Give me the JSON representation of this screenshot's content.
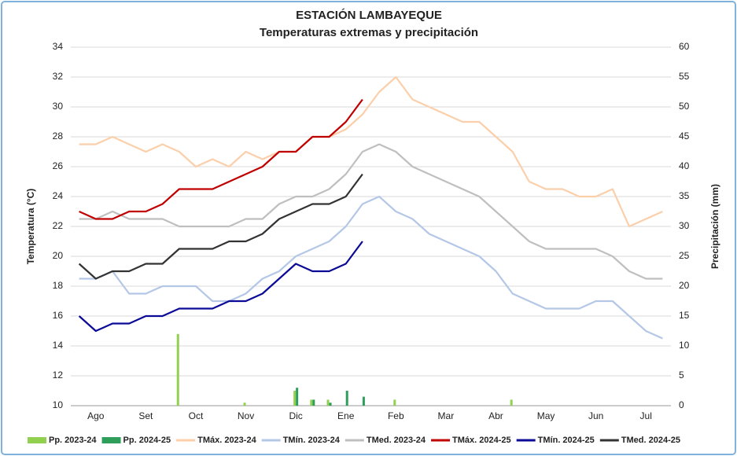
{
  "chart_data": {
    "type": "line",
    "title": "ESTACIÓN LAMBAYEQUE",
    "subtitle": "Temperaturas extremas y precipitación",
    "y_label": "Temperatura (°C)",
    "y2_label": "Precipitación (mm)",
    "categories": [
      null,
      "Ago",
      null,
      null,
      "Set",
      null,
      null,
      "Oct",
      null,
      null,
      "Nov",
      null,
      null,
      "Dic",
      null,
      null,
      "Ene",
      null,
      null,
      "Feb",
      null,
      null,
      "Mar",
      null,
      null,
      "Abr",
      null,
      null,
      "May",
      null,
      null,
      "Jun",
      null,
      null,
      "Jul",
      null
    ],
    "ylim": [
      10,
      34
    ],
    "yticks": [
      10,
      12,
      14,
      16,
      18,
      20,
      22,
      24,
      26,
      28,
      30,
      32,
      34
    ],
    "y2lim": [
      0,
      60
    ],
    "y2ticks": [
      0,
      5,
      10,
      15,
      20,
      25,
      30,
      35,
      40,
      45,
      50,
      55,
      60
    ],
    "grid": true,
    "series": [
      {
        "name": "Pp. 2023-24",
        "type": "bar",
        "axis": "y2",
        "color": "#92d050",
        "values": [
          0,
          0,
          0,
          0,
          0,
          0,
          12,
          0,
          0,
          0,
          0.5,
          0,
          0,
          2.5,
          1,
          1,
          0,
          0,
          0,
          1,
          0,
          0,
          0,
          0,
          0,
          0,
          1,
          0,
          0,
          0,
          0,
          0,
          0,
          0,
          0,
          0
        ]
      },
      {
        "name": "Pp. 2024-25",
        "type": "bar",
        "axis": "y2",
        "color": "#2e9e5b",
        "values": [
          0,
          0,
          0,
          0,
          0,
          0,
          0,
          0,
          0,
          0,
          0,
          0,
          0,
          3,
          1,
          0.5,
          2.5,
          1.5,
          null,
          null,
          null,
          null,
          null,
          null,
          null,
          null,
          null,
          null,
          null,
          null,
          null,
          null,
          null,
          null,
          null,
          null
        ]
      },
      {
        "name": "TMáx. 2023-24",
        "color": "#fbcfaa",
        "values": [
          27.5,
          27.5,
          28,
          27.5,
          27,
          27.5,
          27,
          26,
          26.5,
          26,
          27,
          26.5,
          27,
          27,
          28,
          28,
          28.5,
          29.5,
          31,
          32,
          30.5,
          30,
          29.5,
          29,
          29,
          28,
          27,
          25,
          24.5,
          24.5,
          24,
          24,
          24.5,
          22,
          22.5,
          23
        ]
      },
      {
        "name": "TMín. 2023-24",
        "color": "#b4c7e7",
        "values": [
          18.5,
          18.5,
          19,
          17.5,
          17.5,
          18,
          18,
          18,
          17,
          17,
          17.5,
          18.5,
          19,
          20,
          20.5,
          21,
          22,
          23.5,
          24,
          23,
          22.5,
          21.5,
          21,
          20.5,
          20,
          19,
          17.5,
          17,
          16.5,
          16.5,
          16.5,
          17,
          17,
          16,
          15,
          14.5
        ]
      },
      {
        "name": "TMed. 2023-24",
        "color": "#bfbfbf",
        "values": [
          22.5,
          22.5,
          23,
          22.5,
          22.5,
          22.5,
          22,
          22,
          22,
          22,
          22.5,
          22.5,
          23.5,
          24,
          24,
          24.5,
          25.5,
          27,
          27.5,
          27,
          26,
          25.5,
          25,
          24.5,
          24,
          23,
          22,
          21,
          20.5,
          20.5,
          20.5,
          20.5,
          20,
          19,
          18.5,
          18.5
        ]
      },
      {
        "name": "TMáx. 2024-25",
        "color": "#c00000",
        "values": [
          23,
          22.5,
          22.5,
          23,
          23,
          23.5,
          24.5,
          24.5,
          24.5,
          25,
          25.5,
          26,
          27,
          27,
          28,
          28,
          29,
          30.5,
          null,
          null,
          null,
          null,
          null,
          null,
          null,
          null,
          null,
          null,
          null,
          null,
          null,
          null,
          null,
          null,
          null,
          null
        ]
      },
      {
        "name": "TMín. 2024-25",
        "color": "#0a0a96",
        "values": [
          16,
          15,
          15.5,
          15.5,
          16,
          16,
          16.5,
          16.5,
          16.5,
          17,
          17,
          17.5,
          18.5,
          19.5,
          19,
          19,
          19.5,
          21,
          null,
          null,
          null,
          null,
          null,
          null,
          null,
          null,
          null,
          null,
          null,
          null,
          null,
          null,
          null,
          null,
          null,
          null
        ]
      },
      {
        "name": "TMed. 2024-25",
        "color": "#333333",
        "values": [
          19.5,
          18.5,
          19,
          19,
          19.5,
          19.5,
          20.5,
          20.5,
          20.5,
          21,
          21,
          21.5,
          22.5,
          23,
          23.5,
          23.5,
          24,
          25.5,
          null,
          null,
          null,
          null,
          null,
          null,
          null,
          null,
          null,
          null,
          null,
          null,
          null,
          null,
          null,
          null,
          null,
          null
        ]
      }
    ]
  }
}
